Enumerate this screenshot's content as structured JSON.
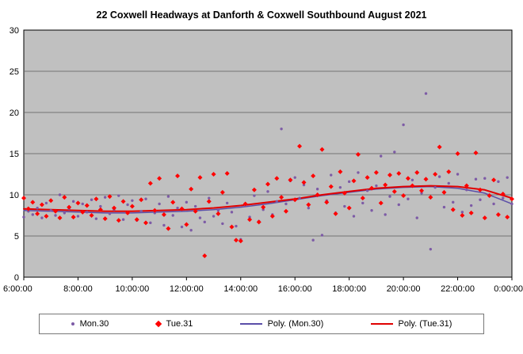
{
  "chart": {
    "title": "22 Coxwell Headways at Danforth & Coxwell Southbound August 2021"
  },
  "colors": {
    "plot_background": "#C0C0C0",
    "gridline": "#5a5a5a",
    "axis": "#000000",
    "mon_points": "#7D5BA6",
    "tue_points": "#FF0000",
    "mon_poly_line": "#5B4EA8",
    "tue_poly_line": "#E00000"
  },
  "legend": {
    "items": [
      {
        "label": "Mon.30",
        "marker": "dot",
        "color": "#7D5BA6"
      },
      {
        "label": "Tue.31",
        "marker": "diamond",
        "color": "#FF0000"
      },
      {
        "label": "Poly. (Mon.30)",
        "marker": "line",
        "color": "#5B4EA8"
      },
      {
        "label": "Poly. (Tue.31)",
        "marker": "line",
        "color": "#E00000"
      }
    ]
  },
  "chart_data": {
    "type": "scatter",
    "title": "22 Coxwell Headways at Danforth & Coxwell Southbound August 2021",
    "xlabel": "",
    "ylabel": "",
    "x_range": [
      6,
      24
    ],
    "y_range": [
      0,
      30
    ],
    "x_ticks": [
      6,
      8,
      10,
      12,
      14,
      16,
      18,
      20,
      22,
      24
    ],
    "x_tick_labels": [
      "6:00:00",
      "8:00:00",
      "10:00:00",
      "12:00:00",
      "14:00:00",
      "16:00:00",
      "18:00:00",
      "20:00:00",
      "22:00:00",
      "0:00:00"
    ],
    "y_ticks": [
      0,
      5,
      10,
      15,
      20,
      25,
      30
    ],
    "grid": "horizontal",
    "legend_position": "bottom",
    "series": [
      {
        "name": "Mon.30",
        "kind": "scatter",
        "marker": "dot",
        "color": "#7D5BA6",
        "points": [
          [
            6.0,
            7.3
          ],
          [
            6.17,
            8.0
          ],
          [
            6.33,
            7.6
          ],
          [
            6.5,
            8.4
          ],
          [
            6.67,
            7.2
          ],
          [
            6.83,
            9.0
          ],
          [
            7.0,
            8.1
          ],
          [
            7.17,
            7.5
          ],
          [
            7.33,
            10.0
          ],
          [
            7.5,
            7.8
          ],
          [
            7.67,
            8.3
          ],
          [
            7.83,
            9.2
          ],
          [
            8.0,
            7.4
          ],
          [
            8.17,
            8.9
          ],
          [
            8.33,
            7.9
          ],
          [
            8.5,
            9.4
          ],
          [
            8.67,
            7.1
          ],
          [
            8.83,
            8.6
          ],
          [
            9.0,
            9.7
          ],
          [
            9.17,
            7.7
          ],
          [
            9.33,
            8.2
          ],
          [
            9.5,
            9.9
          ],
          [
            9.67,
            7.0
          ],
          [
            9.83,
            8.8
          ],
          [
            10.0,
            9.3
          ],
          [
            10.17,
            6.9
          ],
          [
            10.33,
            8.0
          ],
          [
            10.5,
            9.5
          ],
          [
            10.67,
            6.6
          ],
          [
            10.83,
            7.8
          ],
          [
            11.0,
            8.9
          ],
          [
            11.17,
            6.3
          ],
          [
            11.33,
            9.8
          ],
          [
            11.5,
            7.5
          ],
          [
            11.67,
            8.4
          ],
          [
            11.83,
            6.1
          ],
          [
            12.0,
            9.1
          ],
          [
            12.17,
            5.7
          ],
          [
            12.33,
            8.6
          ],
          [
            12.5,
            7.2
          ],
          [
            12.67,
            6.7
          ],
          [
            12.83,
            9.6
          ],
          [
            13.0,
            7.4
          ],
          [
            13.17,
            8.1
          ],
          [
            13.33,
            6.5
          ],
          [
            13.5,
            9.0
          ],
          [
            13.67,
            7.9
          ],
          [
            13.83,
            6.2
          ],
          [
            14.0,
            4.6
          ],
          [
            14.17,
            8.7
          ],
          [
            14.33,
            7.3
          ],
          [
            14.5,
            9.9
          ],
          [
            14.67,
            6.8
          ],
          [
            14.83,
            8.2
          ],
          [
            15.0,
            10.4
          ],
          [
            15.17,
            7.6
          ],
          [
            15.33,
            9.2
          ],
          [
            15.5,
            18.0
          ],
          [
            15.67,
            8.9
          ],
          [
            15.83,
            11.7
          ],
          [
            16.0,
            12.1
          ],
          [
            16.17,
            9.6
          ],
          [
            16.33,
            11.2
          ],
          [
            16.5,
            8.4
          ],
          [
            16.67,
            4.5
          ],
          [
            16.83,
            10.7
          ],
          [
            17.0,
            5.1
          ],
          [
            17.17,
            9.3
          ],
          [
            17.33,
            12.4
          ],
          [
            17.5,
            7.8
          ],
          [
            17.67,
            10.9
          ],
          [
            17.83,
            8.6
          ],
          [
            18.0,
            11.6
          ],
          [
            18.17,
            7.4
          ],
          [
            18.33,
            12.7
          ],
          [
            18.5,
            9.0
          ],
          [
            18.67,
            10.5
          ],
          [
            18.83,
            8.1
          ],
          [
            19.0,
            11.1
          ],
          [
            19.17,
            14.7
          ],
          [
            19.33,
            7.6
          ],
          [
            19.5,
            9.8
          ],
          [
            19.67,
            15.2
          ],
          [
            19.83,
            8.8
          ],
          [
            20.0,
            18.5
          ],
          [
            20.17,
            9.5
          ],
          [
            20.33,
            11.8
          ],
          [
            20.5,
            7.2
          ],
          [
            20.67,
            10.2
          ],
          [
            20.83,
            22.3
          ],
          [
            21.0,
            3.4
          ],
          [
            21.17,
            10.9
          ],
          [
            21.33,
            12.2
          ],
          [
            21.5,
            8.5
          ],
          [
            21.67,
            11.4
          ],
          [
            21.83,
            9.1
          ],
          [
            22.0,
            12.5
          ],
          [
            22.17,
            7.9
          ],
          [
            22.33,
            10.6
          ],
          [
            22.5,
            8.7
          ],
          [
            22.67,
            11.9
          ],
          [
            22.83,
            9.4
          ],
          [
            23.0,
            12.0
          ],
          [
            23.17,
            10.0
          ],
          [
            23.33,
            8.9
          ],
          [
            23.5,
            11.6
          ],
          [
            23.67,
            9.6
          ],
          [
            23.83,
            12.1
          ],
          [
            24.0,
            8.9
          ]
        ]
      },
      {
        "name": "Tue.31",
        "kind": "scatter",
        "marker": "diamond",
        "color": "#FF0000",
        "points": [
          [
            6.0,
            9.6
          ],
          [
            6.17,
            8.3
          ],
          [
            6.33,
            9.1
          ],
          [
            6.5,
            7.7
          ],
          [
            6.67,
            8.8
          ],
          [
            6.83,
            7.4
          ],
          [
            7.0,
            9.3
          ],
          [
            7.17,
            8.0
          ],
          [
            7.33,
            7.2
          ],
          [
            7.5,
            9.7
          ],
          [
            7.67,
            8.5
          ],
          [
            7.83,
            7.3
          ],
          [
            8.0,
            9.0
          ],
          [
            8.17,
            7.9
          ],
          [
            8.33,
            8.7
          ],
          [
            8.5,
            7.5
          ],
          [
            8.67,
            9.5
          ],
          [
            8.83,
            8.2
          ],
          [
            9.0,
            7.1
          ],
          [
            9.17,
            9.8
          ],
          [
            9.33,
            8.4
          ],
          [
            9.5,
            6.9
          ],
          [
            9.67,
            9.2
          ],
          [
            9.83,
            7.8
          ],
          [
            10.0,
            8.6
          ],
          [
            10.17,
            7.0
          ],
          [
            10.33,
            9.4
          ],
          [
            10.5,
            6.6
          ],
          [
            10.67,
            11.4
          ],
          [
            10.83,
            8.1
          ],
          [
            11.0,
            12.0
          ],
          [
            11.17,
            7.6
          ],
          [
            11.33,
            5.9
          ],
          [
            11.5,
            9.1
          ],
          [
            11.67,
            12.3
          ],
          [
            11.83,
            8.3
          ],
          [
            12.0,
            6.4
          ],
          [
            12.17,
            10.7
          ],
          [
            12.33,
            8.0
          ],
          [
            12.5,
            12.1
          ],
          [
            12.67,
            2.6
          ],
          [
            12.83,
            9.2
          ],
          [
            13.0,
            12.5
          ],
          [
            13.17,
            7.7
          ],
          [
            13.33,
            10.3
          ],
          [
            13.5,
            12.6
          ],
          [
            13.67,
            6.1
          ],
          [
            13.83,
            4.5
          ],
          [
            14.0,
            4.4
          ],
          [
            14.17,
            8.9
          ],
          [
            14.33,
            7.0
          ],
          [
            14.5,
            10.6
          ],
          [
            14.67,
            6.7
          ],
          [
            14.83,
            8.5
          ],
          [
            15.0,
            11.3
          ],
          [
            15.17,
            7.4
          ],
          [
            15.33,
            12.0
          ],
          [
            15.5,
            9.7
          ],
          [
            15.67,
            8.0
          ],
          [
            15.83,
            11.8
          ],
          [
            16.0,
            9.4
          ],
          [
            16.17,
            15.9
          ],
          [
            16.33,
            11.5
          ],
          [
            16.5,
            8.8
          ],
          [
            16.67,
            12.3
          ],
          [
            16.83,
            10.0
          ],
          [
            17.0,
            15.5
          ],
          [
            17.17,
            9.1
          ],
          [
            17.33,
            11.0
          ],
          [
            17.5,
            7.7
          ],
          [
            17.67,
            12.8
          ],
          [
            17.83,
            10.2
          ],
          [
            18.0,
            8.4
          ],
          [
            18.17,
            11.7
          ],
          [
            18.33,
            14.9
          ],
          [
            18.5,
            9.6
          ],
          [
            18.67,
            12.1
          ],
          [
            18.83,
            10.8
          ],
          [
            19.0,
            12.7
          ],
          [
            19.17,
            9.0
          ],
          [
            19.33,
            11.2
          ],
          [
            19.5,
            12.4
          ],
          [
            19.67,
            10.4
          ],
          [
            19.83,
            12.6
          ],
          [
            20.0,
            9.9
          ],
          [
            20.17,
            12.0
          ],
          [
            20.33,
            11.1
          ],
          [
            20.5,
            12.7
          ],
          [
            20.67,
            10.5
          ],
          [
            20.83,
            11.9
          ],
          [
            21.0,
            9.7
          ],
          [
            21.17,
            12.5
          ],
          [
            21.33,
            15.8
          ],
          [
            21.5,
            10.3
          ],
          [
            21.67,
            12.8
          ],
          [
            21.83,
            8.2
          ],
          [
            22.0,
            15.0
          ],
          [
            22.17,
            7.5
          ],
          [
            22.33,
            11.1
          ],
          [
            22.5,
            7.8
          ],
          [
            22.67,
            15.1
          ],
          [
            22.83,
            10.6
          ],
          [
            23.0,
            7.2
          ],
          [
            23.17,
            9.9
          ],
          [
            23.33,
            11.8
          ],
          [
            23.5,
            7.6
          ],
          [
            23.67,
            10.1
          ],
          [
            23.83,
            7.3
          ],
          [
            24.0,
            9.5
          ]
        ]
      },
      {
        "name": "Poly. (Mon.30)",
        "kind": "line",
        "color": "#5B4EA8",
        "points": [
          [
            6,
            8.1
          ],
          [
            7,
            8.0
          ],
          [
            8,
            7.9
          ],
          [
            9,
            7.8
          ],
          [
            10,
            7.8
          ],
          [
            11,
            7.9
          ],
          [
            12,
            8.0
          ],
          [
            13,
            8.2
          ],
          [
            14,
            8.5
          ],
          [
            15,
            8.9
          ],
          [
            16,
            9.4
          ],
          [
            17,
            9.9
          ],
          [
            18,
            10.3
          ],
          [
            19,
            10.7
          ],
          [
            20,
            10.9
          ],
          [
            21,
            11.0
          ],
          [
            22,
            10.8
          ],
          [
            23,
            10.2
          ],
          [
            24,
            8.9
          ]
        ]
      },
      {
        "name": "Poly. (Tue.31)",
        "kind": "line",
        "color": "#E00000",
        "points": [
          [
            6,
            8.3
          ],
          [
            7,
            8.2
          ],
          [
            8,
            8.1
          ],
          [
            9,
            8.0
          ],
          [
            10,
            8.0
          ],
          [
            11,
            8.1
          ],
          [
            12,
            8.2
          ],
          [
            13,
            8.4
          ],
          [
            14,
            8.7
          ],
          [
            15,
            9.1
          ],
          [
            16,
            9.5
          ],
          [
            17,
            10.0
          ],
          [
            18,
            10.4
          ],
          [
            19,
            10.8
          ],
          [
            20,
            11.0
          ],
          [
            21,
            11.1
          ],
          [
            22,
            11.0
          ],
          [
            23,
            10.6
          ],
          [
            24,
            9.6
          ]
        ]
      }
    ]
  }
}
